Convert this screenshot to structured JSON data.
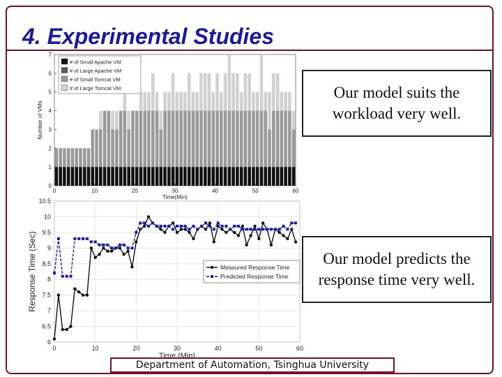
{
  "slide": {
    "title": "4. Experimental Studies",
    "callout_1": "Our model suits the workload very well.",
    "callout_2": "Our model predicts the response time very well.",
    "footer": "Department of Automation, Tsinghua University",
    "colors": {
      "title": "#1a1aa0",
      "frame": "#7a1024"
    }
  },
  "chart_data": [
    {
      "type": "bar",
      "stacked": true,
      "xlabel": "Time(Min)",
      "ylabel": "Number of VMs",
      "xlim": [
        0,
        60
      ],
      "ylim": [
        0,
        7
      ],
      "xticks": [
        0,
        10,
        20,
        30,
        40,
        50,
        60
      ],
      "yticks": [
        0,
        1,
        2,
        3,
        4,
        5,
        6,
        7
      ],
      "legend_position": "top-left",
      "x": [
        0,
        1,
        2,
        3,
        4,
        5,
        6,
        7,
        8,
        9,
        10,
        11,
        12,
        13,
        14,
        15,
        16,
        17,
        18,
        19,
        20,
        21,
        22,
        23,
        24,
        25,
        26,
        27,
        28,
        29,
        30,
        31,
        32,
        33,
        34,
        35,
        36,
        37,
        38,
        39,
        40,
        41,
        42,
        43,
        44,
        45,
        46,
        47,
        48,
        49,
        50,
        51,
        52,
        53,
        54,
        55,
        56,
        57,
        58,
        59
      ],
      "series": [
        {
          "name": "# of Small  Apache VM",
          "color": "#111111",
          "values": [
            1,
            1,
            1,
            1,
            1,
            1,
            1,
            1,
            1,
            1,
            1,
            1,
            1,
            1,
            1,
            1,
            1,
            1,
            1,
            1,
            1,
            1,
            1,
            1,
            1,
            1,
            1,
            1,
            1,
            1,
            1,
            1,
            1,
            1,
            1,
            1,
            1,
            1,
            1,
            1,
            1,
            1,
            1,
            1,
            1,
            1,
            1,
            1,
            1,
            1,
            1,
            1,
            1,
            1,
            1,
            1,
            1,
            1,
            1,
            1
          ]
        },
        {
          "name": "# of Large Apache VM",
          "color": "#5a5a5a",
          "values": [
            0,
            0,
            0,
            0,
            0,
            0,
            0,
            0,
            0,
            0,
            0,
            0,
            0,
            0,
            0,
            0,
            0,
            0,
            0,
            0,
            0,
            0,
            0,
            0,
            0,
            0,
            0,
            0,
            0,
            0,
            0,
            0,
            0,
            0,
            0,
            0,
            0,
            0,
            0,
            0,
            0,
            0,
            0,
            0,
            0,
            0,
            0,
            0,
            0,
            0,
            0,
            0,
            0,
            0,
            0,
            0,
            0,
            0,
            0,
            0
          ]
        },
        {
          "name": "# of Small  Tomcat VM",
          "color": "#9a9a9a",
          "values": [
            1,
            1,
            1,
            1,
            1,
            1,
            1,
            1,
            1,
            2,
            2,
            2,
            3,
            3,
            2,
            2,
            3,
            3,
            2,
            3,
            3,
            3,
            3,
            3,
            3,
            3,
            2,
            3,
            3,
            3,
            3,
            3,
            3,
            3,
            3,
            3,
            3,
            3,
            3,
            3,
            3,
            3,
            3,
            3,
            3,
            3,
            3,
            3,
            3,
            3,
            3,
            3,
            3,
            2,
            3,
            3,
            3,
            3,
            3,
            2
          ]
        },
        {
          "name": "# of Large Tomcat VM",
          "color": "#d2d2d2",
          "values": [
            0,
            0,
            0,
            0,
            0,
            0,
            0,
            0,
            0,
            0,
            0,
            1,
            0,
            0,
            1,
            1,
            0,
            1,
            1,
            0,
            0,
            1,
            1,
            1,
            2,
            1,
            1,
            1,
            1,
            2,
            1,
            1,
            1,
            2,
            1,
            1,
            2,
            2,
            2,
            1,
            2,
            1,
            2,
            3,
            2,
            2,
            1,
            2,
            2,
            1,
            1,
            3,
            1,
            2,
            2,
            2,
            1,
            1,
            1,
            1
          ]
        }
      ]
    },
    {
      "type": "line",
      "xlabel": "Time (Min)",
      "ylabel": "Response Time (Sec)",
      "xlim": [
        0,
        60
      ],
      "ylim": [
        6,
        10.5
      ],
      "xticks": [
        0,
        10,
        20,
        30,
        40,
        50,
        60
      ],
      "yticks": [
        6,
        6.5,
        7,
        7.5,
        8,
        8.5,
        9,
        9.5,
        10,
        10.5
      ],
      "legend_position": "center-right",
      "x": [
        0,
        1,
        2,
        3,
        4,
        5,
        6,
        7,
        8,
        9,
        10,
        11,
        12,
        13,
        14,
        15,
        16,
        17,
        18,
        19,
        20,
        21,
        22,
        23,
        24,
        25,
        26,
        27,
        28,
        29,
        30,
        31,
        32,
        33,
        34,
        35,
        36,
        37,
        38,
        39,
        40,
        41,
        42,
        43,
        44,
        45,
        46,
        47,
        48,
        49,
        50,
        51,
        52,
        53,
        54,
        55,
        56,
        57,
        58,
        59
      ],
      "series": [
        {
          "name": "Measured Response Time",
          "color": "#111111",
          "style": "solid-circle",
          "values": [
            6.1,
            7.5,
            6.4,
            6.4,
            6.5,
            7.7,
            7.6,
            7.5,
            7.5,
            9.0,
            8.7,
            8.8,
            9.0,
            8.9,
            8.9,
            9.0,
            9.0,
            8.8,
            8.9,
            8.4,
            9.2,
            9.6,
            9.7,
            10.0,
            9.8,
            9.7,
            9.6,
            9.5,
            9.7,
            9.8,
            9.5,
            9.6,
            9.6,
            9.5,
            9.3,
            9.6,
            9.7,
            9.6,
            9.8,
            9.2,
            9.7,
            9.6,
            9.5,
            9.6,
            9.5,
            9.4,
            9.7,
            9.1,
            9.4,
            9.7,
            9.3,
            9.8,
            9.6,
            9.1,
            9.6,
            9.5,
            9.4,
            9.3,
            9.6,
            9.2
          ]
        },
        {
          "name": "Predicted Response Time",
          "color": "#1a1ab4",
          "style": "dashed-square",
          "values": [
            8.2,
            9.3,
            8.1,
            8.1,
            8.1,
            9.3,
            9.3,
            9.3,
            9.3,
            9.2,
            9.2,
            9.1,
            9.1,
            9.1,
            9.0,
            9.0,
            9.1,
            9.1,
            9.0,
            9.0,
            9.5,
            9.8,
            9.8,
            9.7,
            9.8,
            9.7,
            9.7,
            9.7,
            9.7,
            9.6,
            9.7,
            9.7,
            9.7,
            9.6,
            9.7,
            9.6,
            9.7,
            9.8,
            9.7,
            9.6,
            9.8,
            9.7,
            9.7,
            9.6,
            9.7,
            9.7,
            9.6,
            9.6,
            9.6,
            9.6,
            9.6,
            9.6,
            9.6,
            9.6,
            9.6,
            9.6,
            9.7,
            9.6,
            9.8,
            9.8
          ]
        }
      ]
    }
  ]
}
